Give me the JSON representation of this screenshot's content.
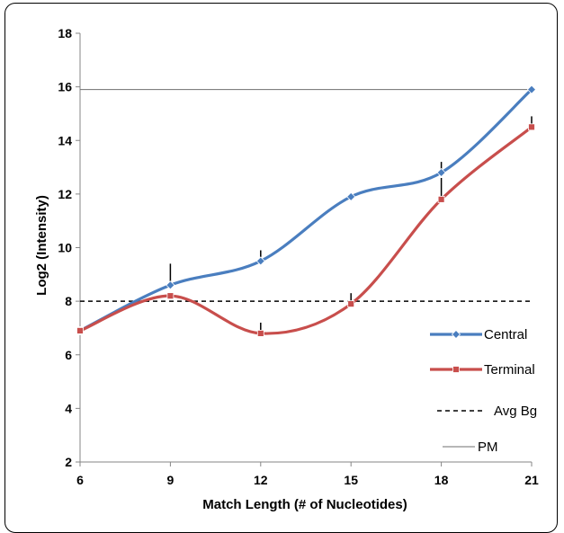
{
  "chart_data": {
    "type": "line",
    "title": "",
    "xlabel": "Match Length (# of Nucleotides)",
    "ylabel": "Log2 (Intensity)",
    "x": [
      6,
      9,
      12,
      15,
      18,
      21
    ],
    "xlim": [
      6,
      21
    ],
    "ylim": [
      2,
      18
    ],
    "x_ticks": [
      "6",
      "9",
      "12",
      "15",
      "18",
      "21"
    ],
    "y_ticks": [
      "2",
      "4",
      "6",
      "8",
      "10",
      "12",
      "14",
      "16",
      "18"
    ],
    "grid": false,
    "legend_position": "right",
    "series": [
      {
        "name": "Central",
        "color": "#4a7ebf",
        "marker": "diamond",
        "values": [
          6.9,
          8.6,
          9.5,
          11.9,
          12.8,
          15.9
        ],
        "error_upper": [
          0,
          0.8,
          0.4,
          0,
          0.4,
          0
        ]
      },
      {
        "name": "Terminal",
        "color": "#c84e4c",
        "marker": "square",
        "values": [
          6.9,
          8.2,
          6.8,
          7.9,
          11.8,
          14.5
        ],
        "error_upper": [
          0,
          0,
          0.4,
          0.4,
          0.8,
          0.4
        ]
      }
    ],
    "reference_lines": [
      {
        "name": "Avg Bg",
        "y": 8,
        "style": "dashed",
        "color": "#000000"
      },
      {
        "name": "PM",
        "y": 15.9,
        "style": "solid",
        "color": "#7f7f7f"
      }
    ]
  }
}
